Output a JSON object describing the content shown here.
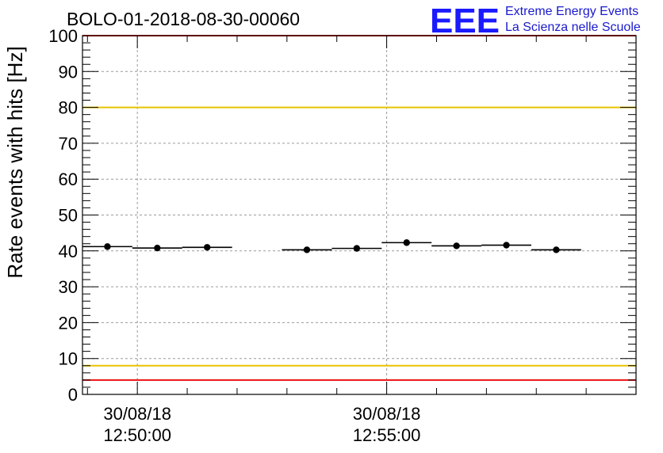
{
  "chart_data": {
    "type": "scatter",
    "title": "BOLO-01-2018-08-30-00060",
    "ylabel": "Rate events with hits [Hz]",
    "xlabel": "",
    "ylim": [
      0,
      100
    ],
    "y_ticks": [
      "0",
      "10",
      "20",
      "30",
      "40",
      "50",
      "60",
      "70",
      "80",
      "90",
      "100"
    ],
    "x_tick_labels": [
      {
        "date": "30/08/18",
        "time": "12:50:00",
        "minutes": 0
      },
      {
        "date": "30/08/18",
        "time": "12:55:00",
        "minutes": 5
      }
    ],
    "xlim_minutes": [
      -1.1,
      10
    ],
    "grid": true,
    "bin_half_width_minutes": 0.5,
    "points": [
      {
        "x_minutes": -0.6,
        "y": 41.2
      },
      {
        "x_minutes": 0.4,
        "y": 40.8
      },
      {
        "x_minutes": 1.4,
        "y": 41.0
      },
      {
        "x_minutes": 3.4,
        "y": 40.3
      },
      {
        "x_minutes": 4.4,
        "y": 40.7
      },
      {
        "x_minutes": 5.4,
        "y": 42.3
      },
      {
        "x_minutes": 6.4,
        "y": 41.4
      },
      {
        "x_minutes": 7.4,
        "y": 41.6
      },
      {
        "x_minutes": 8.4,
        "y": 40.3
      }
    ],
    "reference_lines": [
      {
        "y": 100,
        "color": "#ee1111"
      },
      {
        "y": 80,
        "color": "#e8c400"
      },
      {
        "y": 8,
        "color": "#e8c400"
      },
      {
        "y": 4,
        "color": "#ee1111"
      }
    ]
  },
  "logo": {
    "letters": "EEE",
    "line1": "Extreme Energy Events",
    "line2": "La Scienza nelle Scuole",
    "color": "#1a1aff"
  }
}
